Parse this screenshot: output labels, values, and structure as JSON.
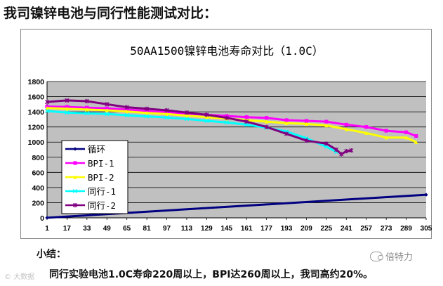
{
  "page": {
    "heading": "我司镍锌电池与同行性能测试对比：",
    "summary_label": "小结：",
    "summary_text": "同行实验电池1.0C寿命220周以上，BPI达260周以上，我司高约20%。",
    "watermark": "倍特力",
    "corner_mark": "© 大数据"
  },
  "icons": {
    "watermark": "wechat-icon"
  },
  "chart_data": {
    "type": "line",
    "title": "50AA1500镍锌电池寿命对比（1.0C）",
    "ylim": [
      0,
      1800
    ],
    "yticks": [
      0,
      200,
      400,
      600,
      800,
      1000,
      1200,
      1400,
      1600,
      1800
    ],
    "xlim": [
      1,
      305
    ],
    "xticks": [
      1,
      17,
      33,
      49,
      65,
      81,
      97,
      113,
      129,
      145,
      161,
      177,
      193,
      209,
      225,
      241,
      257,
      273,
      289,
      305
    ],
    "grid": true,
    "plot_background": "#c0c0c0",
    "legend_position": "inside-left",
    "series": [
      {
        "name": "循环",
        "color": "#000080",
        "marker": "diamond",
        "x": [
          1,
          305
        ],
        "y": [
          1,
          305
        ]
      },
      {
        "name": "BPI-1",
        "color": "#ff00ff",
        "marker": "square",
        "x": [
          1,
          17,
          33,
          49,
          65,
          81,
          97,
          113,
          129,
          145,
          161,
          177,
          193,
          209,
          225,
          241,
          257,
          273,
          289,
          297
        ],
        "y": [
          1470,
          1465,
          1455,
          1445,
          1430,
          1410,
          1395,
          1375,
          1360,
          1345,
          1330,
          1320,
          1290,
          1280,
          1270,
          1230,
          1200,
          1150,
          1130,
          1080
        ]
      },
      {
        "name": "BPI-2",
        "color": "#ffff00",
        "marker": "triangle",
        "x": [
          1,
          17,
          33,
          49,
          65,
          81,
          97,
          113,
          129,
          145,
          161,
          177,
          193,
          209,
          225,
          241,
          257,
          273,
          289,
          297
        ],
        "y": [
          1450,
          1440,
          1430,
          1420,
          1405,
          1385,
          1370,
          1350,
          1330,
          1310,
          1290,
          1270,
          1250,
          1240,
          1220,
          1170,
          1120,
          1060,
          1060,
          1000
        ]
      },
      {
        "name": "同行-1",
        "color": "#00ffff",
        "marker": "x",
        "x": [
          1,
          17,
          33,
          49,
          65,
          81,
          97,
          113,
          129,
          145,
          161,
          177,
          193,
          209,
          225,
          233
        ],
        "y": [
          1410,
          1390,
          1380,
          1370,
          1355,
          1340,
          1325,
          1305,
          1280,
          1260,
          1230,
          1190,
          1140,
          1050,
          940,
          870
        ]
      },
      {
        "name": "同行-2",
        "color": "#800080",
        "marker": "star",
        "x": [
          1,
          17,
          33,
          49,
          65,
          81,
          97,
          113,
          129,
          145,
          161,
          177,
          193,
          209,
          225,
          233,
          237,
          241,
          245
        ],
        "y": [
          1530,
          1550,
          1540,
          1500,
          1460,
          1440,
          1420,
          1390,
          1360,
          1320,
          1270,
          1200,
          1110,
          1020,
          980,
          900,
          840,
          880,
          890
        ]
      }
    ]
  }
}
